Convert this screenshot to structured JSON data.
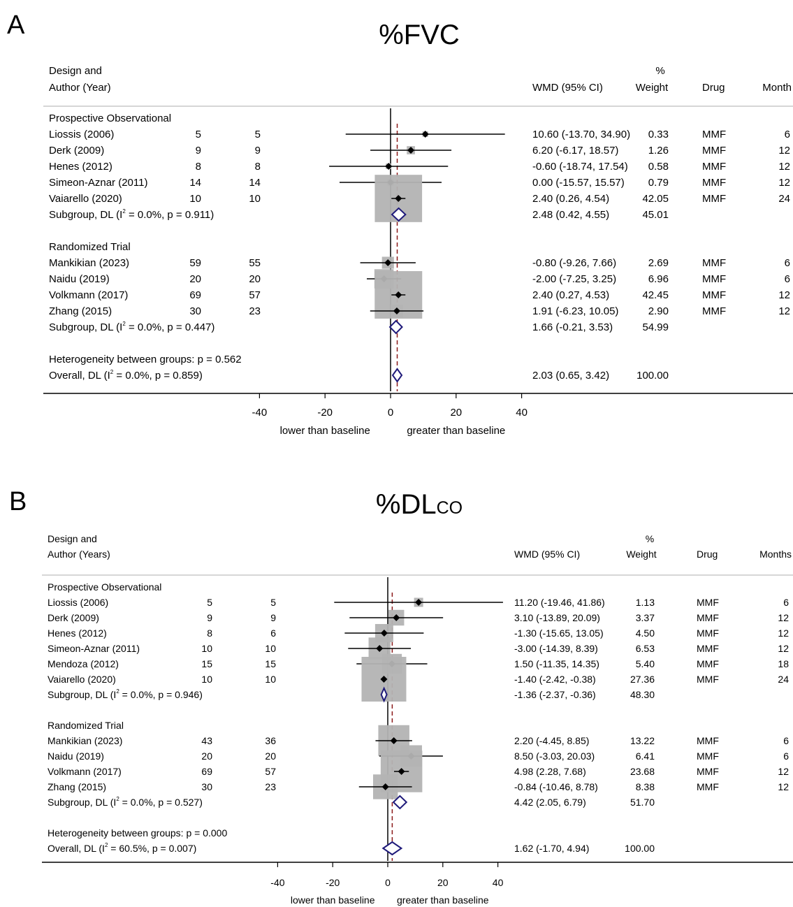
{
  "colors": {
    "box": "#b3b3b3",
    "diamond": "#1f1a7a",
    "ref_line": "#8b1a1a",
    "axis": "#000000"
  },
  "chart_data": [
    {
      "type": "forest",
      "panel_letter": "A",
      "title": "%FVC",
      "title_sub": "",
      "header": {
        "design_line1": "Design and",
        "design_line2": "Author (Year)",
        "wmd": "WMD (95% CI)",
        "weight_line1": "%",
        "weight_line2": "Weight",
        "drug": "Drug",
        "months": "Month"
      },
      "xaxis": {
        "ticks": [
          -40,
          -20,
          0,
          20,
          40
        ],
        "lim": [
          -40,
          40
        ],
        "left_label": "lower than baseline",
        "right_label": "greater than baseline"
      },
      "overall_effect": 2.03,
      "groups": [
        {
          "name": "Prospective Observational",
          "studies": [
            {
              "label": "Liossis  (2006)",
              "n1": "5",
              "n2": "5",
              "est": 10.6,
              "lo": -13.7,
              "hi": 34.9,
              "ci_text": "10.60 (-13.70, 34.90)",
              "weight": "0.33",
              "drug": "MMF",
              "months": "6"
            },
            {
              "label": "Derk  (2009)",
              "n1": "9",
              "n2": "9",
              "est": 6.2,
              "lo": -6.17,
              "hi": 18.57,
              "ci_text": "6.20 (-6.17, 18.57)",
              "weight": "1.26",
              "drug": "MMF",
              "months": "12"
            },
            {
              "label": "Henes (2012)",
              "n1": "8",
              "n2": "8",
              "est": -0.6,
              "lo": -18.74,
              "hi": 17.54,
              "ci_text": "-0.60 (-18.74, 17.54)",
              "weight": "0.58",
              "drug": "MMF",
              "months": "12"
            },
            {
              "label": "Simeon-Aznar (2011)",
              "n1": "14",
              "n2": "14",
              "est": 0.0,
              "lo": -15.57,
              "hi": 15.57,
              "ci_text": "0.00 (-15.57, 15.57)",
              "weight": "0.79",
              "drug": "MMF",
              "months": "12"
            },
            {
              "label": "Vaiarello (2020)",
              "n1": "10",
              "n2": "10",
              "est": 2.4,
              "lo": 0.26,
              "hi": 4.54,
              "ci_text": "2.40 (0.26, 4.54)",
              "weight": "42.05",
              "drug": "MMF",
              "months": "24"
            }
          ],
          "subgroup": {
            "label_pre": "Subgroup, DL (I",
            "label_post": " = 0.0%, p = 0.911)",
            "est": 2.48,
            "lo": 0.42,
            "hi": 4.55,
            "ci_text": "2.48 (0.42, 4.55)",
            "weight": "45.01"
          }
        },
        {
          "name": "Randomized Trial",
          "studies": [
            {
              "label": "Mankikian (2023)",
              "n1": "59",
              "n2": "55",
              "est": -0.8,
              "lo": -9.26,
              "hi": 7.66,
              "ci_text": "-0.80 (-9.26, 7.66)",
              "weight": "2.69",
              "drug": "MMF",
              "months": "6"
            },
            {
              "label": "Naidu (2019)",
              "n1": "20",
              "n2": "20",
              "est": -2.0,
              "lo": -7.25,
              "hi": 3.25,
              "ci_text": "-2.00 (-7.25, 3.25)",
              "weight": "6.96",
              "drug": "MMF",
              "months": "6"
            },
            {
              "label": "Volkmann (2017)",
              "n1": "69",
              "n2": "57",
              "est": 2.4,
              "lo": 0.27,
              "hi": 4.53,
              "ci_text": "2.40 (0.27, 4.53)",
              "weight": "42.45",
              "drug": "MMF",
              "months": "12"
            },
            {
              "label": "Zhang (2015)",
              "n1": "30",
              "n2": "23",
              "est": 1.91,
              "lo": -6.23,
              "hi": 10.05,
              "ci_text": "1.91 (-6.23, 10.05)",
              "weight": "2.90",
              "drug": "MMF",
              "months": "12"
            }
          ],
          "subgroup": {
            "label_pre": "Subgroup, DL (I",
            "label_post": " = 0.0%, p = 0.447)",
            "est": 1.66,
            "lo": -0.21,
            "hi": 3.53,
            "ci_text": "1.66 (-0.21, 3.53)",
            "weight": "54.99"
          }
        }
      ],
      "heterogeneity": "Heterogeneity between groups: p = 0.562",
      "overall": {
        "label_pre": "Overall, DL (I",
        "label_post": " = 0.0%, p = 0.859)",
        "est": 2.03,
        "lo": 0.65,
        "hi": 3.42,
        "ci_text": "2.03 (0.65, 3.42)",
        "weight": "100.00"
      }
    },
    {
      "type": "forest",
      "panel_letter": "B",
      "title": "%DL",
      "title_sub": "CO",
      "header": {
        "design_line1": "Design and",
        "design_line2": "Author (Years)",
        "wmd": "WMD (95% CI)",
        "weight_line1": "%",
        "weight_line2": "Weight",
        "drug": "Drug",
        "months": "Months"
      },
      "xaxis": {
        "ticks": [
          -40,
          -20,
          0,
          20,
          40
        ],
        "lim": [
          -40,
          40
        ],
        "left_label": "lower than baseline",
        "right_label": "greater than baseline"
      },
      "overall_effect": 1.62,
      "groups": [
        {
          "name": "Prospective Observational",
          "studies": [
            {
              "label": "Liossis  (2006)",
              "n1": "5",
              "n2": "5",
              "est": 11.2,
              "lo": -19.46,
              "hi": 41.86,
              "ci_text": "11.20 (-19.46, 41.86)",
              "weight": "1.13",
              "drug": "MMF",
              "months": "6"
            },
            {
              "label": "Derk (2009)",
              "n1": "9",
              "n2": "9",
              "est": 3.1,
              "lo": -13.89,
              "hi": 20.09,
              "ci_text": "3.10 (-13.89, 20.09)",
              "weight": "3.37",
              "drug": "MMF",
              "months": "12"
            },
            {
              "label": "Henes  (2012)",
              "n1": "8",
              "n2": "6",
              "est": -1.3,
              "lo": -15.65,
              "hi": 13.05,
              "ci_text": "-1.30 (-15.65, 13.05)",
              "weight": "4.50",
              "drug": "MMF",
              "months": "12"
            },
            {
              "label": "Simeon-Aznar  (2011)",
              "n1": "10",
              "n2": "10",
              "est": -3.0,
              "lo": -14.39,
              "hi": 8.39,
              "ci_text": "-3.00 (-14.39, 8.39)",
              "weight": "6.53",
              "drug": "MMF",
              "months": "12"
            },
            {
              "label": "Mendoza (2012)",
              "n1": "15",
              "n2": "15",
              "est": 1.5,
              "lo": -11.35,
              "hi": 14.35,
              "ci_text": "1.50 (-11.35, 14.35)",
              "weight": "5.40",
              "drug": "MMF",
              "months": "18"
            },
            {
              "label": "Vaiarello  (2020)",
              "n1": "10",
              "n2": "10",
              "est": -1.4,
              "lo": -2.42,
              "hi": -0.38,
              "ci_text": "-1.40 (-2.42, -0.38)",
              "weight": "27.36",
              "drug": "MMF",
              "months": "24"
            }
          ],
          "subgroup": {
            "label_pre": "Subgroup, DL (I",
            "label_post": " = 0.0%, p = 0.946)",
            "est": -1.36,
            "lo": -2.37,
            "hi": -0.36,
            "ci_text": "-1.36 (-2.37, -0.36)",
            "weight": "48.30"
          }
        },
        {
          "name": "Randomized Trial",
          "studies": [
            {
              "label": "Mankikian (2023)",
              "n1": "43",
              "n2": "36",
              "est": 2.2,
              "lo": -4.45,
              "hi": 8.85,
              "ci_text": "2.20 (-4.45, 8.85)",
              "weight": "13.22",
              "drug": "MMF",
              "months": "6"
            },
            {
              "label": "Naidu (2019)",
              "n1": "20",
              "n2": "20",
              "est": 8.5,
              "lo": -3.03,
              "hi": 20.03,
              "ci_text": "8.50 (-3.03, 20.03)",
              "weight": "6.41",
              "drug": "MMF",
              "months": "6"
            },
            {
              "label": "Volkmann (2017)",
              "n1": "69",
              "n2": "57",
              "est": 4.98,
              "lo": 2.28,
              "hi": 7.68,
              "ci_text": "4.98 (2.28, 7.68)",
              "weight": "23.68",
              "drug": "MMF",
              "months": "12"
            },
            {
              "label": "Zhang  (2015)",
              "n1": "30",
              "n2": "23",
              "est": -0.84,
              "lo": -10.46,
              "hi": 8.78,
              "ci_text": "-0.84 (-10.46, 8.78)",
              "weight": "8.38",
              "drug": "MMF",
              "months": "12"
            }
          ],
          "subgroup": {
            "label_pre": "Subgroup, DL (I",
            "label_post": " = 0.0%, p = 0.527)",
            "est": 4.42,
            "lo": 2.05,
            "hi": 6.79,
            "ci_text": "4.42 (2.05, 6.79)",
            "weight": "51.70"
          }
        }
      ],
      "heterogeneity": "Heterogeneity between groups: p = 0.000",
      "overall": {
        "label_pre": "Overall, DL (I",
        "label_post": " = 60.5%, p = 0.007)",
        "est": 1.62,
        "lo": -1.7,
        "hi": 4.94,
        "ci_text": "1.62 (-1.70, 4.94)",
        "weight": "100.00"
      }
    }
  ]
}
